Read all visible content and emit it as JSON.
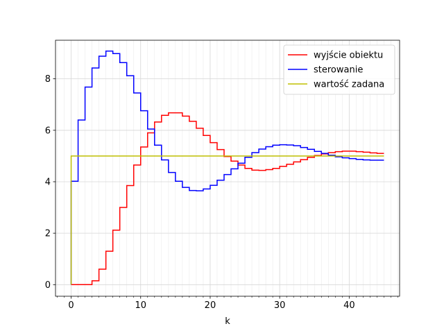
{
  "chart_data": {
    "type": "line",
    "step": true,
    "xlabel": "k",
    "ylabel": "",
    "title": "",
    "xlim": [
      -2.25,
      47.25
    ],
    "ylim": [
      -0.45,
      9.5
    ],
    "xticks": [
      0,
      10,
      20,
      30,
      40
    ],
    "yticks": [
      0,
      2,
      4,
      6,
      8
    ],
    "xminor_step": 1,
    "grid": true,
    "legend_position": "upper right",
    "series": [
      {
        "name": "wyjście obiektu",
        "color": "#ff0000",
        "x": [
          0,
          1,
          2,
          3,
          4,
          5,
          6,
          7,
          8,
          9,
          10,
          11,
          12,
          13,
          14,
          15,
          16,
          17,
          18,
          19,
          20,
          21,
          22,
          23,
          24,
          25,
          26,
          27,
          28,
          29,
          30,
          31,
          32,
          33,
          34,
          35,
          36,
          37,
          38,
          39,
          40,
          41,
          42,
          43,
          44,
          45
        ],
        "values": [
          0,
          0,
          0,
          0,
          0.15,
          0.6,
          1.3,
          2.12,
          3.0,
          3.85,
          4.65,
          5.35,
          5.9,
          6.32,
          6.58,
          6.68,
          6.68,
          6.55,
          6.35,
          6.08,
          5.8,
          5.52,
          5.25,
          4.98,
          4.8,
          4.65,
          4.52,
          4.45,
          4.44,
          4.47,
          4.52,
          4.6,
          4.68,
          4.77,
          4.86,
          4.95,
          5.02,
          5.08,
          5.13,
          5.17,
          5.19,
          5.19,
          5.17,
          5.15,
          5.12,
          5.1
        ]
      },
      {
        "name": "sterowanie",
        "color": "#0000ff",
        "x": [
          0,
          1,
          2,
          3,
          4,
          5,
          6,
          7,
          8,
          9,
          10,
          11,
          12,
          13,
          14,
          15,
          16,
          17,
          18,
          19,
          20,
          21,
          22,
          23,
          24,
          25,
          26,
          27,
          28,
          29,
          30,
          31,
          32,
          33,
          34,
          35,
          36,
          37,
          38,
          39,
          40,
          41,
          42,
          43,
          44,
          45
        ],
        "values": [
          0,
          4.02,
          6.4,
          7.68,
          8.42,
          8.88,
          9.08,
          8.98,
          8.63,
          8.12,
          7.45,
          6.76,
          6.05,
          5.42,
          4.85,
          4.36,
          4.02,
          3.78,
          3.66,
          3.65,
          3.72,
          3.86,
          4.06,
          4.28,
          4.5,
          4.72,
          4.95,
          5.13,
          5.27,
          5.36,
          5.42,
          5.44,
          5.43,
          5.4,
          5.33,
          5.26,
          5.18,
          5.1,
          5.03,
          4.97,
          4.93,
          4.9,
          4.87,
          4.85,
          4.84,
          4.84
        ]
      },
      {
        "name": "wartość zadana",
        "color": "#bfbf00",
        "x": [
          0,
          1,
          2,
          3,
          4,
          5,
          6,
          7,
          8,
          9,
          10,
          11,
          12,
          13,
          14,
          15,
          16,
          17,
          18,
          19,
          20,
          21,
          22,
          23,
          24,
          25,
          26,
          27,
          28,
          29,
          30,
          31,
          32,
          33,
          34,
          35,
          36,
          37,
          38,
          39,
          40,
          41,
          42,
          43,
          44,
          45
        ],
        "values": [
          0,
          5,
          5,
          5,
          5,
          5,
          5,
          5,
          5,
          5,
          5,
          5,
          5,
          5,
          5,
          5,
          5,
          5,
          5,
          5,
          5,
          5,
          5,
          5,
          5,
          5,
          5,
          5,
          5,
          5,
          5,
          5,
          5,
          5,
          5,
          5,
          5,
          5,
          5,
          5,
          5,
          5,
          5,
          5,
          5,
          5
        ]
      }
    ]
  }
}
